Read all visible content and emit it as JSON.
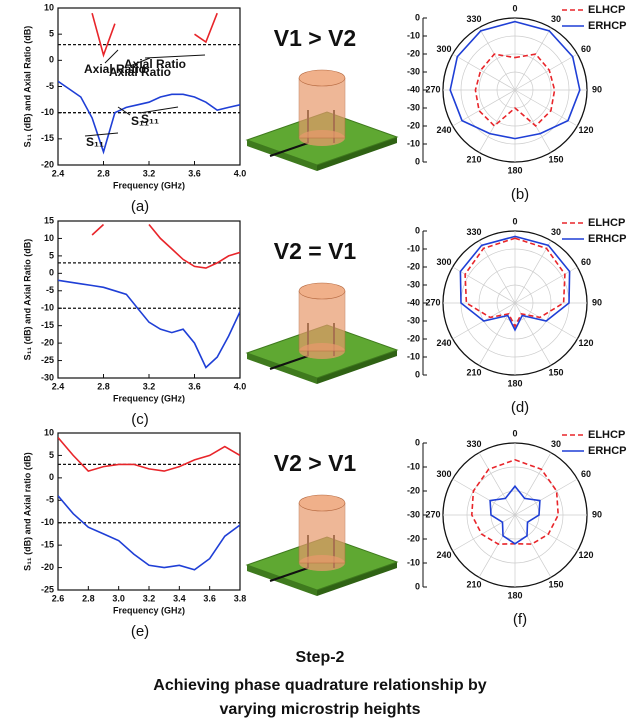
{
  "chart_data": [
    {
      "type": "line",
      "label": "(a)",
      "xlabel": "Frequency (GHz)",
      "ylabel": "S₁₁ (dB) and Axial Ratio (dB)",
      "x": [
        2.4,
        2.5,
        2.6,
        2.7,
        2.8,
        2.9,
        3.0,
        3.1,
        3.2,
        3.3,
        3.4,
        3.5,
        3.6,
        3.7,
        3.8,
        3.9,
        4.0
      ],
      "xlim": [
        2.4,
        4.0
      ],
      "xticks": [
        2.4,
        2.8,
        3.2,
        3.6,
        {
          "value": 4.0,
          "label": "4.0"
        }
      ],
      "ylim": [
        -20,
        10
      ],
      "yticks": [
        -20,
        -15,
        -10,
        -5,
        0,
        5,
        10
      ],
      "reference_lines": [
        3,
        -10
      ],
      "series": [
        {
          "name": "Axial Ratio",
          "color": "#e8252a",
          "values": [
            null,
            null,
            null,
            9,
            1,
            7,
            null,
            null,
            null,
            null,
            null,
            null,
            5,
            3.5,
            9,
            null,
            null
          ]
        },
        {
          "name": "S₁₁",
          "color": "#1f3fd6",
          "values": [
            -4,
            -5.5,
            -7,
            -11,
            -17.5,
            -10,
            -9,
            -8.5,
            -8,
            -7,
            -6.5,
            -6.5,
            -7,
            -8,
            -9.5,
            -9,
            -8.5
          ]
        }
      ]
    },
    {
      "type": "polar",
      "label": "(b)",
      "theta": [
        0,
        30,
        60,
        90,
        120,
        150,
        180,
        210,
        240,
        270,
        300,
        330
      ],
      "thetaticks": [
        0,
        30,
        60,
        90,
        120,
        150,
        180,
        210,
        240,
        270,
        300,
        330
      ],
      "rlim": [
        -40,
        0
      ],
      "rticks": [
        0,
        -10,
        -20,
        -30,
        -40
      ],
      "series": [
        {
          "name": "ELHCP",
          "color": "#e8252a",
          "dashed": true,
          "values": [
            -22,
            -17,
            -18,
            -18,
            -17,
            -17,
            -30,
            -17,
            -17,
            -18,
            -18,
            -17
          ]
        },
        {
          "name": "ERHCP",
          "color": "#1f3fd6",
          "dashed": false,
          "values": [
            -2,
            -2,
            -3,
            -4,
            -6,
            -12,
            -13,
            -12,
            -6,
            -4,
            -3,
            -2
          ]
        }
      ]
    },
    {
      "type": "line",
      "label": "(c)",
      "xlabel": "Frequency (GHz)",
      "ylabel": "S₁₁ (dB) and Axial Ratio (dB)",
      "x": [
        2.4,
        2.5,
        2.6,
        2.7,
        2.8,
        2.9,
        3.0,
        3.1,
        3.2,
        3.3,
        3.4,
        3.5,
        3.6,
        3.7,
        3.8,
        3.9,
        4.0
      ],
      "xlim": [
        2.4,
        4.0
      ],
      "xticks": [
        2.4,
        2.8,
        3.2,
        3.6,
        {
          "value": 4.0,
          "label": "4.0"
        }
      ],
      "ylim": [
        -30,
        15
      ],
      "yticks": [
        -30,
        -25,
        -20,
        -15,
        -10,
        -5,
        0,
        5,
        10,
        15
      ],
      "reference_lines": [
        3,
        -10
      ],
      "series": [
        {
          "name": "Axial Ratio",
          "color": "#e8252a",
          "values": [
            null,
            null,
            null,
            11,
            14,
            null,
            null,
            null,
            14,
            10,
            7,
            4,
            2,
            1.5,
            3,
            5,
            6
          ]
        },
        {
          "name": "S₁₁",
          "color": "#1f3fd6",
          "values": [
            -2,
            -2.5,
            -3,
            -3.5,
            -4,
            -5,
            -6,
            -10,
            -14,
            -16,
            -17,
            -16,
            -20,
            -27,
            -24,
            -18,
            -11
          ]
        }
      ]
    },
    {
      "type": "polar",
      "label": "(d)",
      "theta": [
        0,
        30,
        60,
        90,
        120,
        150,
        180,
        210,
        240,
        270,
        300,
        330
      ],
      "thetaticks": [
        0,
        30,
        60,
        90,
        120,
        150,
        180,
        210,
        240,
        270,
        300,
        330
      ],
      "rlim": [
        -40,
        0
      ],
      "rticks": [
        0,
        -10,
        -20,
        -30,
        -40
      ],
      "series": [
        {
          "name": "ELHCP",
          "color": "#e8252a",
          "dashed": true,
          "values": [
            -4,
            -5,
            -8,
            -13,
            -24,
            -33,
            -27,
            -33,
            -24,
            -13,
            -8,
            -5
          ]
        },
        {
          "name": "ERHCP",
          "color": "#1f3fd6",
          "dashed": false,
          "values": [
            -3,
            -3,
            -5,
            -10,
            -20,
            -32,
            -25,
            -32,
            -20,
            -10,
            -5,
            -3
          ]
        }
      ]
    },
    {
      "type": "line",
      "label": "(e)",
      "xlabel": "Frequency (GHz)",
      "ylabel": "S₁₁ (dB) and Axial ratio (dB)",
      "x": [
        2.6,
        2.7,
        2.8,
        2.9,
        3.0,
        3.1,
        3.2,
        3.3,
        3.4,
        3.5,
        3.6,
        3.7,
        3.8
      ],
      "xlim": [
        2.6,
        3.8
      ],
      "xticks": [
        2.6,
        2.8,
        {
          "value": 3.0,
          "label": "3.0"
        },
        3.2,
        3.4,
        3.6,
        3.8
      ],
      "ylim": [
        -25,
        10
      ],
      "yticks": [
        -25,
        -20,
        -15,
        -10,
        -5,
        0,
        5,
        10
      ],
      "reference_lines": [
        3,
        -10
      ],
      "series": [
        {
          "name": "Axial Ratio",
          "color": "#e8252a",
          "values": [
            9,
            5,
            1.5,
            2.5,
            3,
            3,
            2,
            1.5,
            2.5,
            4,
            5,
            7,
            5
          ]
        },
        {
          "name": "S₁₁",
          "color": "#1f3fd6",
          "values": [
            -4,
            -8,
            -11,
            -12.5,
            -14,
            -17,
            -19.5,
            -20,
            -19.5,
            -20.5,
            -18,
            -13,
            -10.5
          ]
        }
      ]
    },
    {
      "type": "polar",
      "label": "(f)",
      "theta": [
        0,
        30,
        60,
        90,
        120,
        150,
        180,
        210,
        240,
        270,
        300,
        330
      ],
      "thetaticks": [
        0,
        30,
        60,
        90,
        120,
        150,
        180,
        210,
        240,
        270,
        300,
        330
      ],
      "rlim": [
        -30,
        0
      ],
      "rticks": [
        0,
        -10,
        -20,
        -30
      ],
      "series": [
        {
          "name": "ELHCP",
          "color": "#e8252a",
          "dashed": true,
          "values": [
            -7,
            -8,
            -10,
            -12,
            -14,
            -16,
            -18,
            -16,
            -14,
            -12,
            -10,
            -8
          ]
        },
        {
          "name": "ERHCP",
          "color": "#1f3fd6",
          "dashed": false,
          "values": [
            -18,
            -22,
            -18,
            -20,
            -24,
            -20,
            -18,
            -20,
            -24,
            -20,
            -18,
            -22
          ]
        }
      ]
    }
  ],
  "conditions": [
    "V1 > V2",
    "V2 = V1",
    "V2 > V1"
  ],
  "caption": {
    "step": "Step-2",
    "line1": "Achieving phase quadrature relationship by",
    "line2": "varying microstrip heights"
  }
}
